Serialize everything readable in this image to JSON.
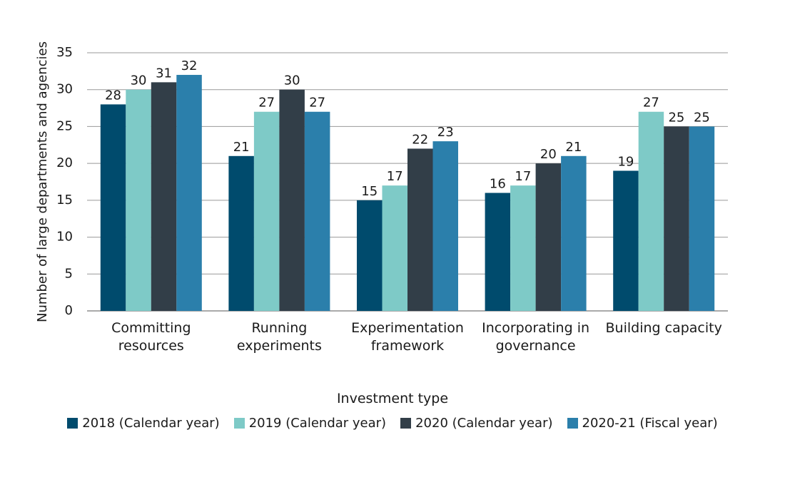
{
  "chart_data": {
    "type": "bar",
    "x_label": "Investment type",
    "y_label": "Number of large departments and agencies",
    "categories": [
      "Committing resources",
      "Running experiments",
      "Experimentation framework",
      "Incorporating in governance",
      "Building capacity"
    ],
    "series": [
      {
        "name": "2018 (Calendar year)",
        "color": "#004b6d",
        "values": [
          28,
          21,
          15,
          16,
          19
        ]
      },
      {
        "name": "2019 (Calendar year)",
        "color": "#7ecac7",
        "values": [
          30,
          27,
          17,
          17,
          27
        ]
      },
      {
        "name": "2020 (Calendar year)",
        "color": "#323e48",
        "values": [
          31,
          30,
          22,
          20,
          25
        ]
      },
      {
        "name": "2020-21 (Fiscal year)",
        "color": "#2b7fab",
        "values": [
          32,
          27,
          23,
          21,
          25
        ]
      }
    ],
    "ylim": [
      0,
      35
    ],
    "yticks": [
      0,
      5,
      10,
      15,
      20,
      25,
      30,
      35
    ],
    "grid": true
  }
}
